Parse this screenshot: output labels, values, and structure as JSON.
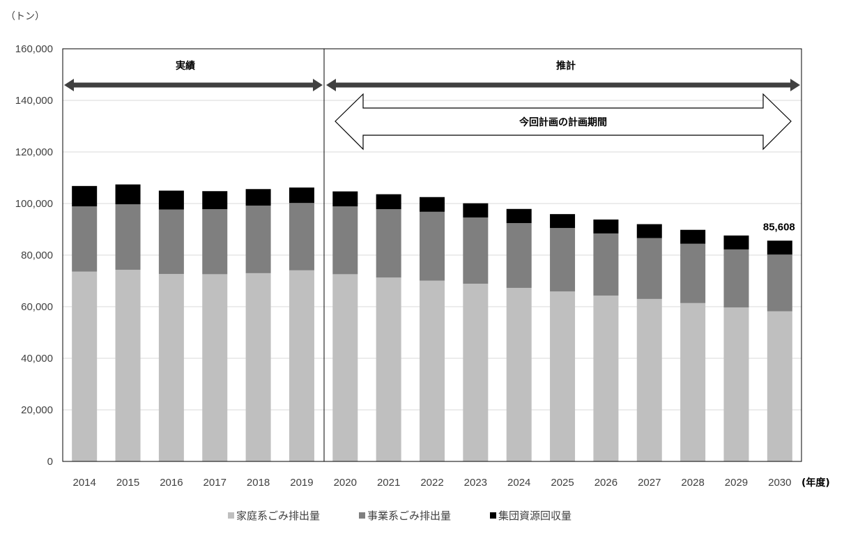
{
  "chart_data": {
    "type": "bar",
    "stacked": true,
    "y_unit": "（トン）",
    "x_unit": "(年度)",
    "ylim": [
      0,
      160000
    ],
    "y_ticks": [
      "0",
      "20,000",
      "40,000",
      "60,000",
      "80,000",
      "100,000",
      "120,000",
      "140,000",
      "160,000"
    ],
    "gridlines": true,
    "categories": [
      "2014",
      "2015",
      "2016",
      "2017",
      "2018",
      "2019",
      "2020",
      "2021",
      "2022",
      "2023",
      "2024",
      "2025",
      "2026",
      "2027",
      "2028",
      "2029",
      "2030"
    ],
    "series": [
      {
        "name": "家庭系ごみ排出量",
        "color": "#bfbfbf",
        "values": [
          73600,
          74300,
          72700,
          72600,
          73000,
          74100,
          72600,
          71300,
          70100,
          68900,
          67300,
          65900,
          64300,
          63000,
          61400,
          59700,
          58200
        ]
      },
      {
        "name": "事業系ごみ排出量",
        "color": "#7f7f7f",
        "values": [
          25300,
          25400,
          25000,
          25200,
          26200,
          26100,
          26300,
          26500,
          26700,
          25700,
          25100,
          24600,
          24100,
          23600,
          23000,
          22500,
          22000
        ]
      },
      {
        "name": "集団資源回収量",
        "color": "#000000",
        "values": [
          7900,
          7700,
          7300,
          7000,
          6400,
          6000,
          5800,
          5800,
          5700,
          5500,
          5500,
          5400,
          5400,
          5400,
          5400,
          5400,
          5408
        ]
      }
    ],
    "data_labels": [
      {
        "category": "2030",
        "text": "85,608"
      }
    ],
    "annotations": {
      "actual_label": "実績",
      "forecast_label": "推計",
      "plan_period_label": "今回計画の計画期間"
    },
    "legend_position": "bottom"
  }
}
